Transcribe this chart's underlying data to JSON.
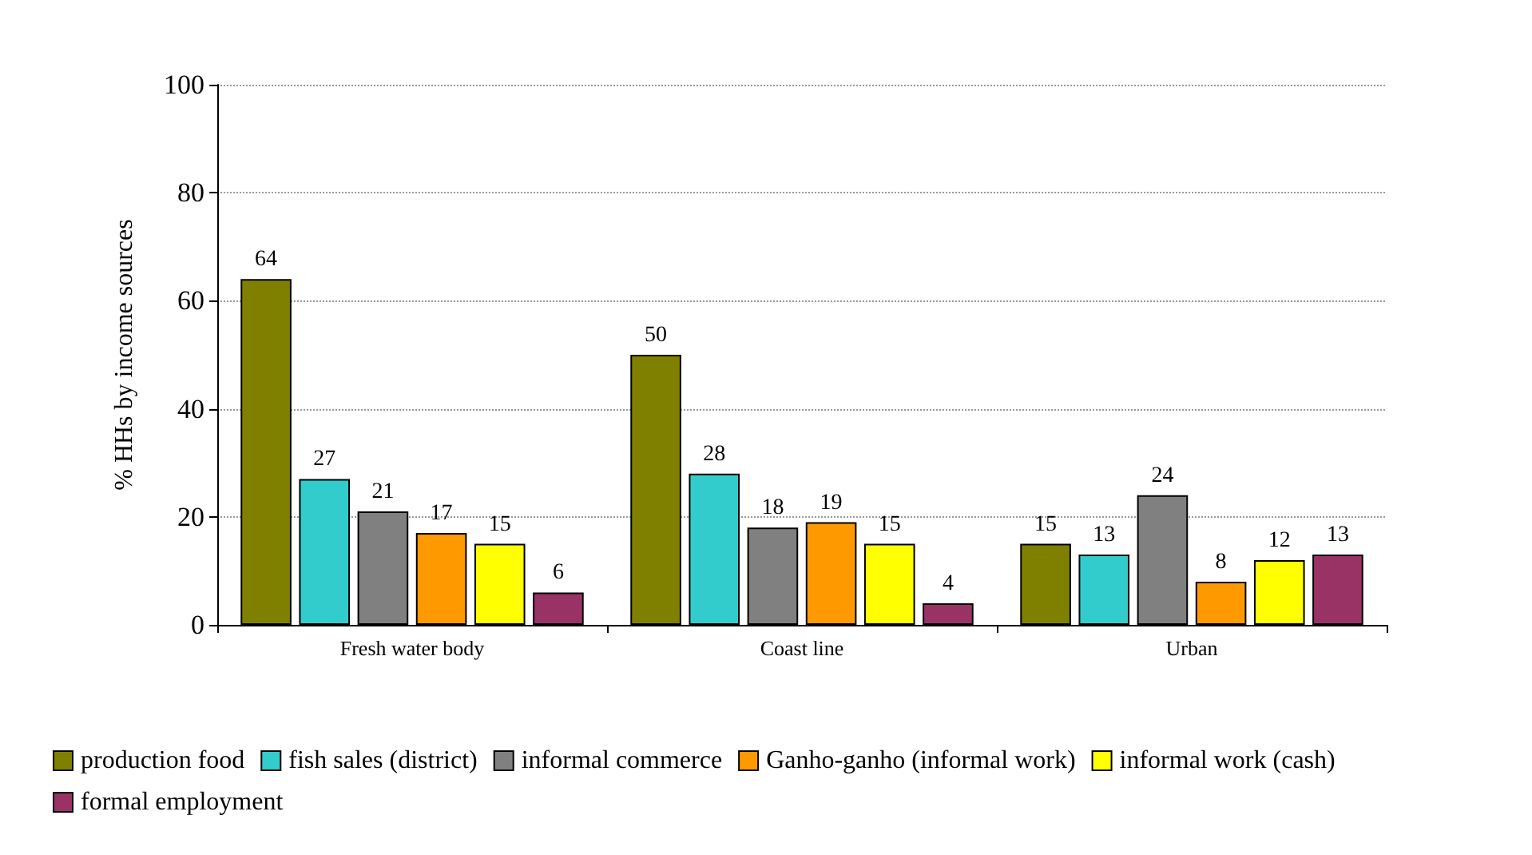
{
  "chart_data": {
    "type": "bar",
    "ylabel": "% HHs by income sources",
    "categories": [
      "Fresh water body",
      "Coast line",
      "Urban"
    ],
    "series": [
      {
        "name": "production food",
        "color": "#808000",
        "values": [
          64,
          50,
          15
        ]
      },
      {
        "name": "fish sales (district)",
        "color": "#33cccc",
        "values": [
          27,
          28,
          13
        ]
      },
      {
        "name": "informal commerce",
        "color": "#808080",
        "values": [
          21,
          18,
          24
        ]
      },
      {
        "name": "Ganho-ganho (informal work)",
        "color": "#ff9900",
        "values": [
          17,
          19,
          8
        ]
      },
      {
        "name": "informal work (cash)",
        "color": "#ffff00",
        "values": [
          15,
          15,
          12
        ]
      },
      {
        "name": "formal employment",
        "color": "#993366",
        "values": [
          6,
          4,
          13
        ]
      }
    ],
    "ylim": [
      0,
      100
    ],
    "yticks": [
      0,
      20,
      40,
      60,
      80,
      100
    ],
    "grid": "y",
    "legend": "bottom",
    "data_labels": true
  }
}
